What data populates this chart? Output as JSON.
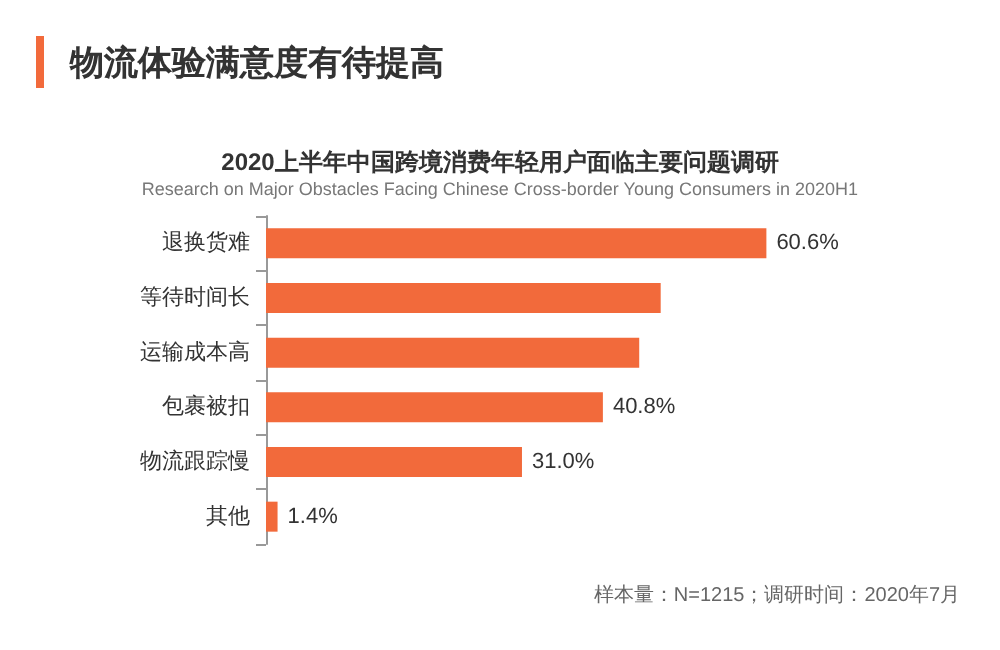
{
  "chart_data": {
    "type": "bar",
    "orientation": "horizontal",
    "title": "物流体验满意度有待提高",
    "subtitle": "2020上半年中国跨境消费年轻用户面临主要问题调研",
    "annotations": [
      "Research on Major Obstacles Facing Chinese Cross-border Young Consumers in 2020H1",
      "样本量：N=1215；调研时间：2020年7月"
    ],
    "categories": [
      "退换货难",
      "等待时间长",
      "运输成本高",
      "包裹被扣",
      "物流跟踪慢",
      "其他"
    ],
    "values": [
      60.6,
      47.8,
      45.2,
      40.8,
      31.0,
      1.4
    ],
    "value_labels": [
      "60.6%",
      null,
      null,
      "40.8%",
      "31.0%",
      "1.4%"
    ],
    "color": "#f26a3b"
  }
}
